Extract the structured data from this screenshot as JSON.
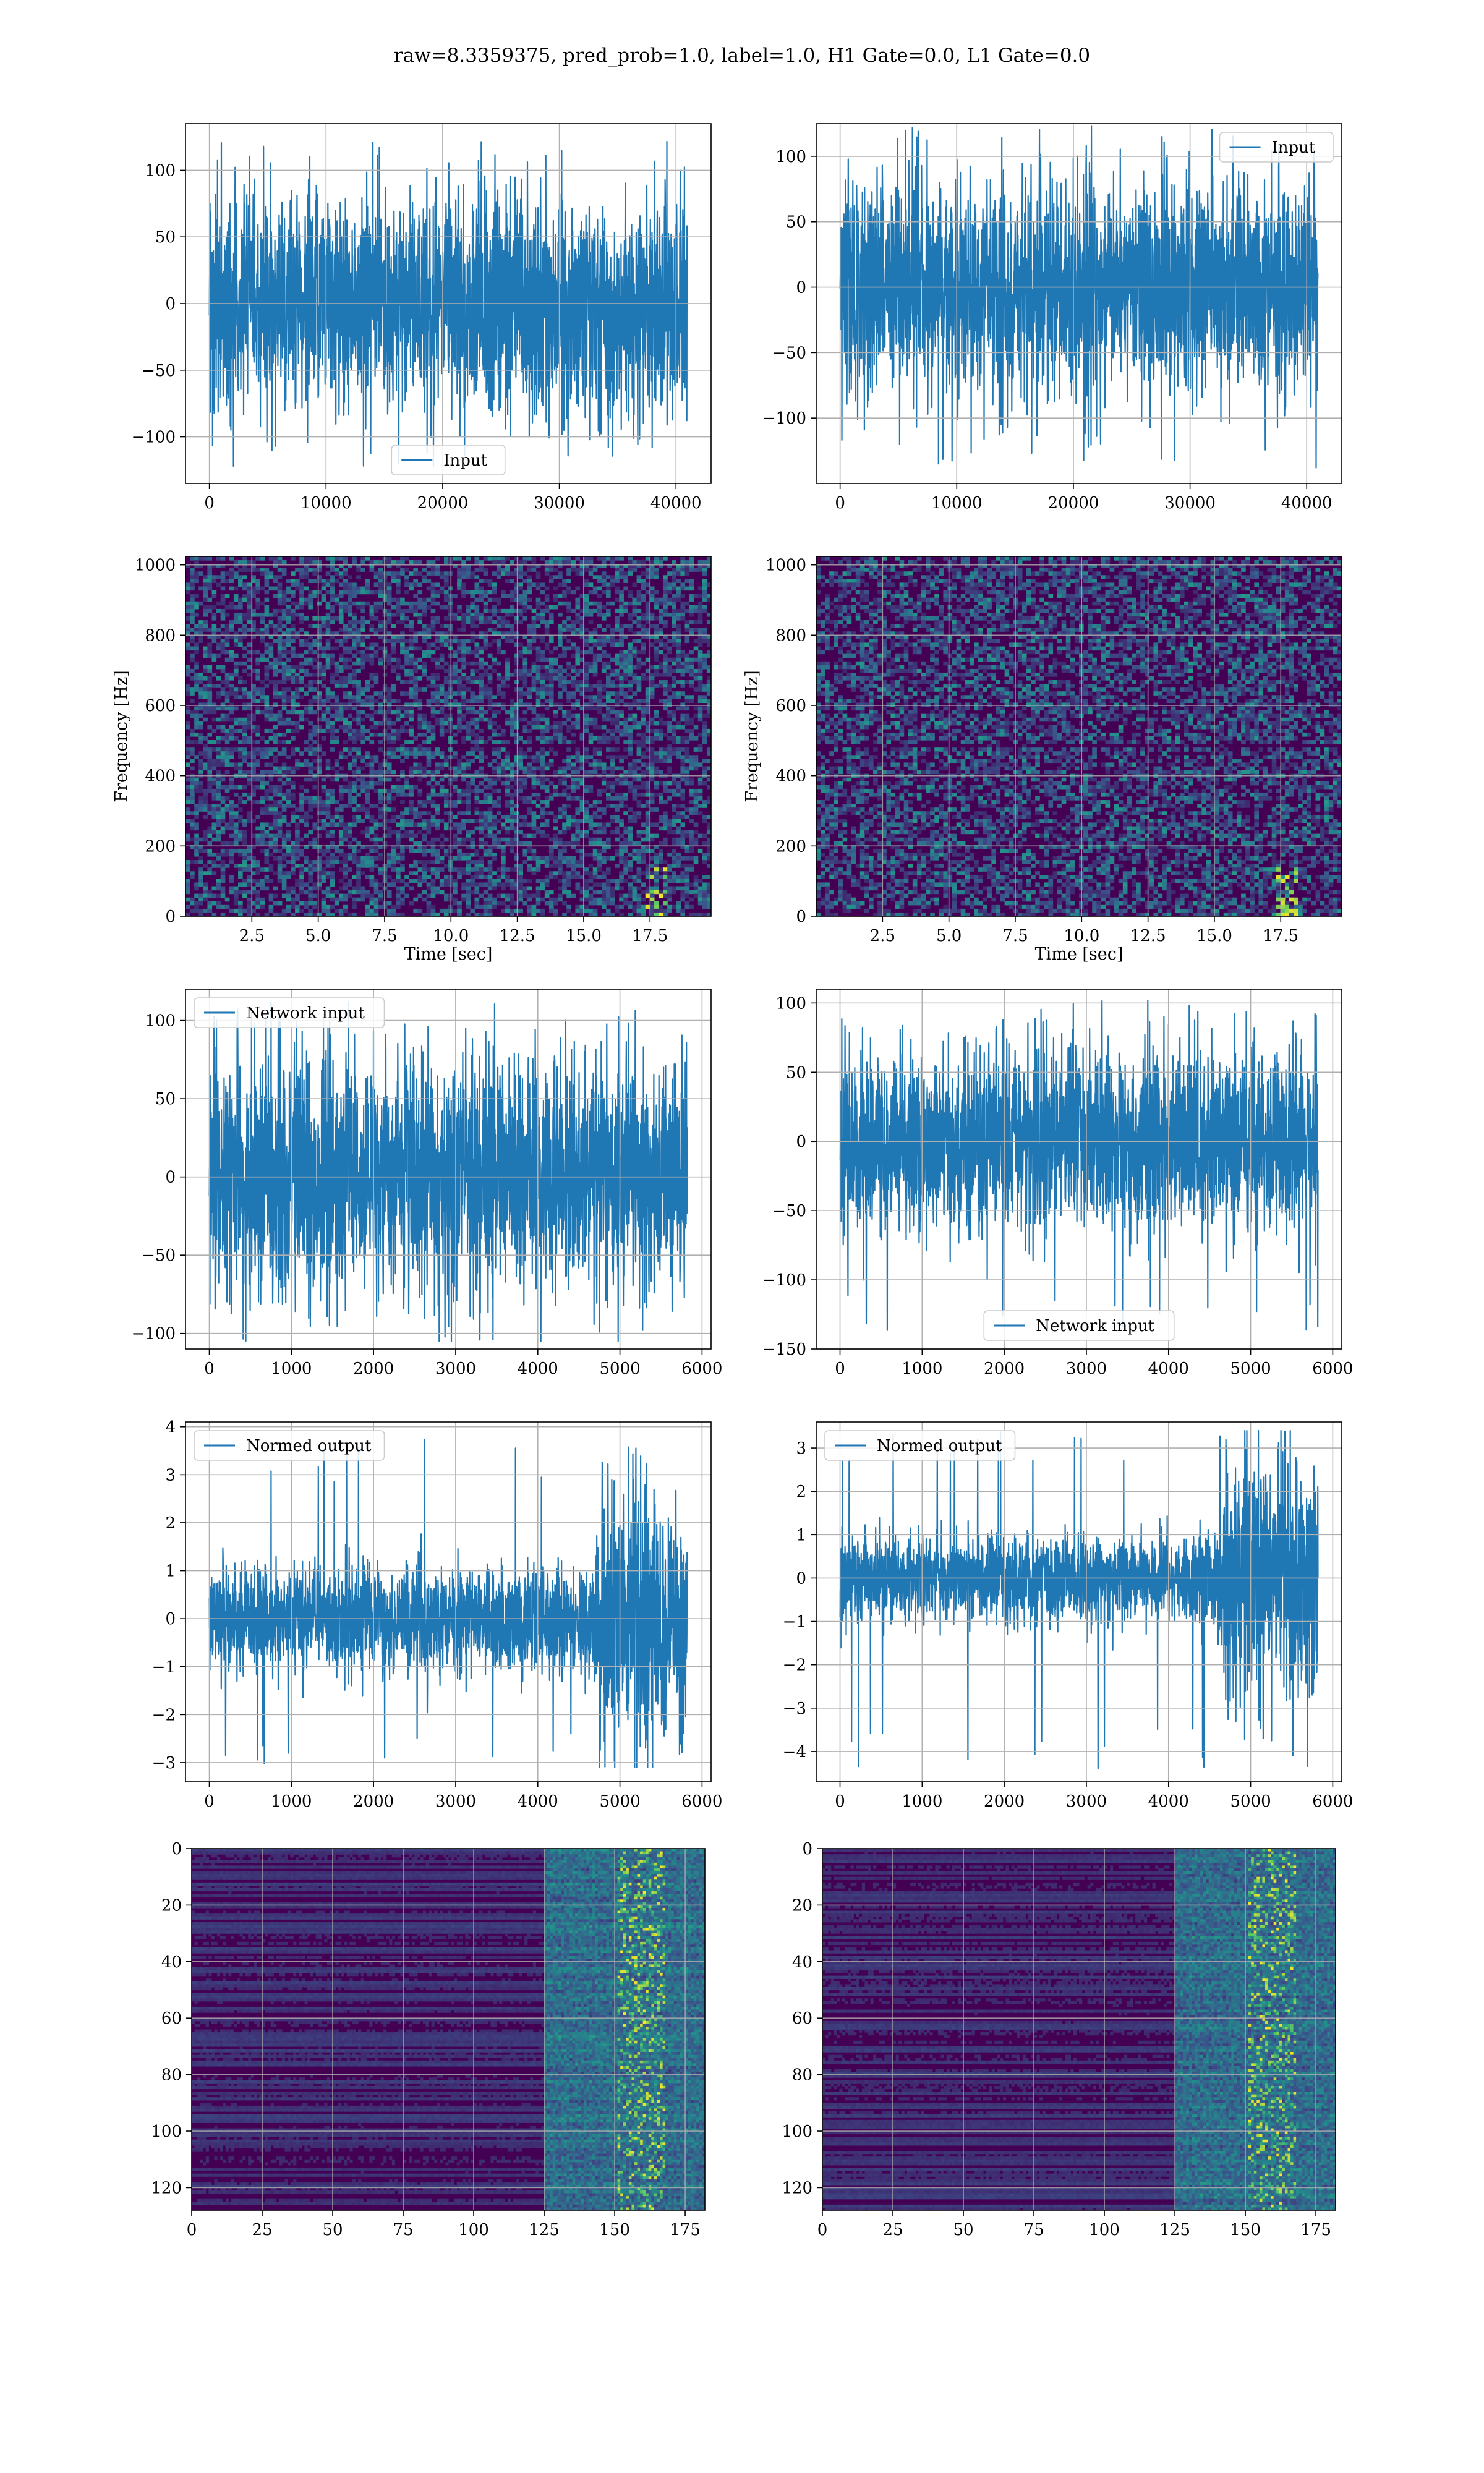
{
  "suptitle": "raw=8.3359375, pred_prob=1.0, label=1.0, H1 Gate=0.0, L1 Gate=0.0",
  "colors": {
    "series": "#1f77b4",
    "grid": "#b0b0b0",
    "axes": "#000000",
    "heat_low": "#440154",
    "heat_mid": "#21918c",
    "heat_high": "#fde725"
  },
  "chart_data": [
    {
      "type": "line",
      "title": "",
      "xlabel": "",
      "ylabel": "",
      "xlim": [
        -2048,
        43008
      ],
      "ylim": [
        -135,
        135
      ],
      "xticks": [
        0,
        10000,
        20000,
        30000,
        40000
      ],
      "yticks": [
        -100,
        -50,
        0,
        50,
        100
      ],
      "series": [
        {
          "name": "Input",
          "n": 40960,
          "std": 30,
          "peak_max": 130,
          "peak_min": -122
        }
      ],
      "legend": "lower center",
      "grid": true
    },
    {
      "type": "line",
      "title": "",
      "xlabel": "",
      "ylabel": "",
      "xlim": [
        -2048,
        43008
      ],
      "ylim": [
        -150,
        125
      ],
      "xticks": [
        0,
        10000,
        20000,
        30000,
        40000
      ],
      "yticks": [
        -100,
        -50,
        0,
        50,
        100
      ],
      "series": [
        {
          "name": "Input",
          "n": 40960,
          "std": 30,
          "peak_max": 125,
          "peak_min": -138
        }
      ],
      "legend": "upper right",
      "grid": true
    },
    {
      "type": "heatmap",
      "title": "",
      "xlabel": "Time [sec]",
      "ylabel": "Frequency [Hz]",
      "xlim": [
        0,
        19.8
      ],
      "ylim": [
        0,
        1024
      ],
      "xticks": [
        2.5,
        5.0,
        7.5,
        10.0,
        12.5,
        15.0,
        17.5
      ],
      "yticks": [
        0,
        200,
        400,
        600,
        800,
        1000
      ],
      "grid": true,
      "colormap": "viridis"
    },
    {
      "type": "heatmap",
      "title": "",
      "xlabel": "Time [sec]",
      "ylabel": "Frequency [Hz]",
      "xlim": [
        0,
        19.8
      ],
      "ylim": [
        0,
        1024
      ],
      "xticks": [
        2.5,
        5.0,
        7.5,
        10.0,
        12.5,
        15.0,
        17.5
      ],
      "yticks": [
        0,
        200,
        400,
        600,
        800,
        1000
      ],
      "grid": true,
      "colormap": "viridis"
    },
    {
      "type": "line",
      "title": "",
      "xlabel": "",
      "ylabel": "",
      "xlim": [
        -290,
        6110
      ],
      "ylim": [
        -110,
        120
      ],
      "xticks": [
        0,
        1000,
        2000,
        3000,
        4000,
        5000,
        6000
      ],
      "yticks": [
        -100,
        -50,
        0,
        50,
        100
      ],
      "series": [
        {
          "name": "Network input",
          "n": 5820,
          "std": 27,
          "peak_max": 112,
          "peak_min": -105
        }
      ],
      "legend": "upper left",
      "grid": true
    },
    {
      "type": "line",
      "title": "",
      "xlabel": "",
      "ylabel": "",
      "xlim": [
        -290,
        6110
      ],
      "ylim": [
        -150,
        110
      ],
      "xticks": [
        0,
        1000,
        2000,
        3000,
        4000,
        5000,
        6000
      ],
      "yticks": [
        -150,
        -100,
        -50,
        0,
        50,
        100
      ],
      "series": [
        {
          "name": "Network input",
          "n": 5820,
          "std": 24,
          "peak_max": 102,
          "peak_min": -140
        }
      ],
      "legend": "lower center",
      "grid": true
    },
    {
      "type": "line",
      "title": "",
      "xlabel": "",
      "ylabel": "",
      "xlim": [
        -290,
        6110
      ],
      "ylim": [
        -3.4,
        4.1
      ],
      "xticks": [
        0,
        1000,
        2000,
        3000,
        4000,
        5000,
        6000
      ],
      "yticks": [
        -3,
        -2,
        -1,
        0,
        1,
        2,
        3,
        4
      ],
      "series": [
        {
          "name": "Normed output",
          "n": 5820,
          "std": 0.4,
          "burst_start": 4700,
          "burst_std": 1.0,
          "peak_max": 3.8,
          "peak_min": -3.1
        }
      ],
      "legend": "upper left",
      "grid": true
    },
    {
      "type": "line",
      "title": "",
      "xlabel": "",
      "ylabel": "",
      "xlim": [
        -290,
        6110
      ],
      "ylim": [
        -4.7,
        3.6
      ],
      "xticks": [
        0,
        1000,
        2000,
        3000,
        4000,
        5000,
        6000
      ],
      "yticks": [
        -4,
        -3,
        -2,
        -1,
        0,
        1,
        2,
        3
      ],
      "series": [
        {
          "name": "Normed output",
          "n": 5820,
          "std": 0.35,
          "burst_start": 4650,
          "burst_std": 1.0,
          "peak_max": 3.4,
          "peak_min": -4.4
        }
      ],
      "legend": "upper left",
      "grid": true
    },
    {
      "type": "heatmap",
      "title": "",
      "xlabel": "",
      "ylabel": "",
      "xlim": [
        0,
        182
      ],
      "ylim": [
        128,
        0
      ],
      "xticks": [
        0,
        25,
        50,
        75,
        100,
        125,
        150,
        175
      ],
      "yticks": [
        0,
        20,
        40,
        60,
        80,
        100,
        120
      ],
      "grid": true,
      "colormap": "viridis",
      "activity_start": 125
    },
    {
      "type": "heatmap",
      "title": "",
      "xlabel": "",
      "ylabel": "",
      "xlim": [
        0,
        182
      ],
      "ylim": [
        128,
        0
      ],
      "xticks": [
        0,
        25,
        50,
        75,
        100,
        125,
        150,
        175
      ],
      "yticks": [
        0,
        20,
        40,
        60,
        80,
        100,
        120
      ],
      "grid": true,
      "colormap": "viridis",
      "activity_start": 125
    }
  ]
}
